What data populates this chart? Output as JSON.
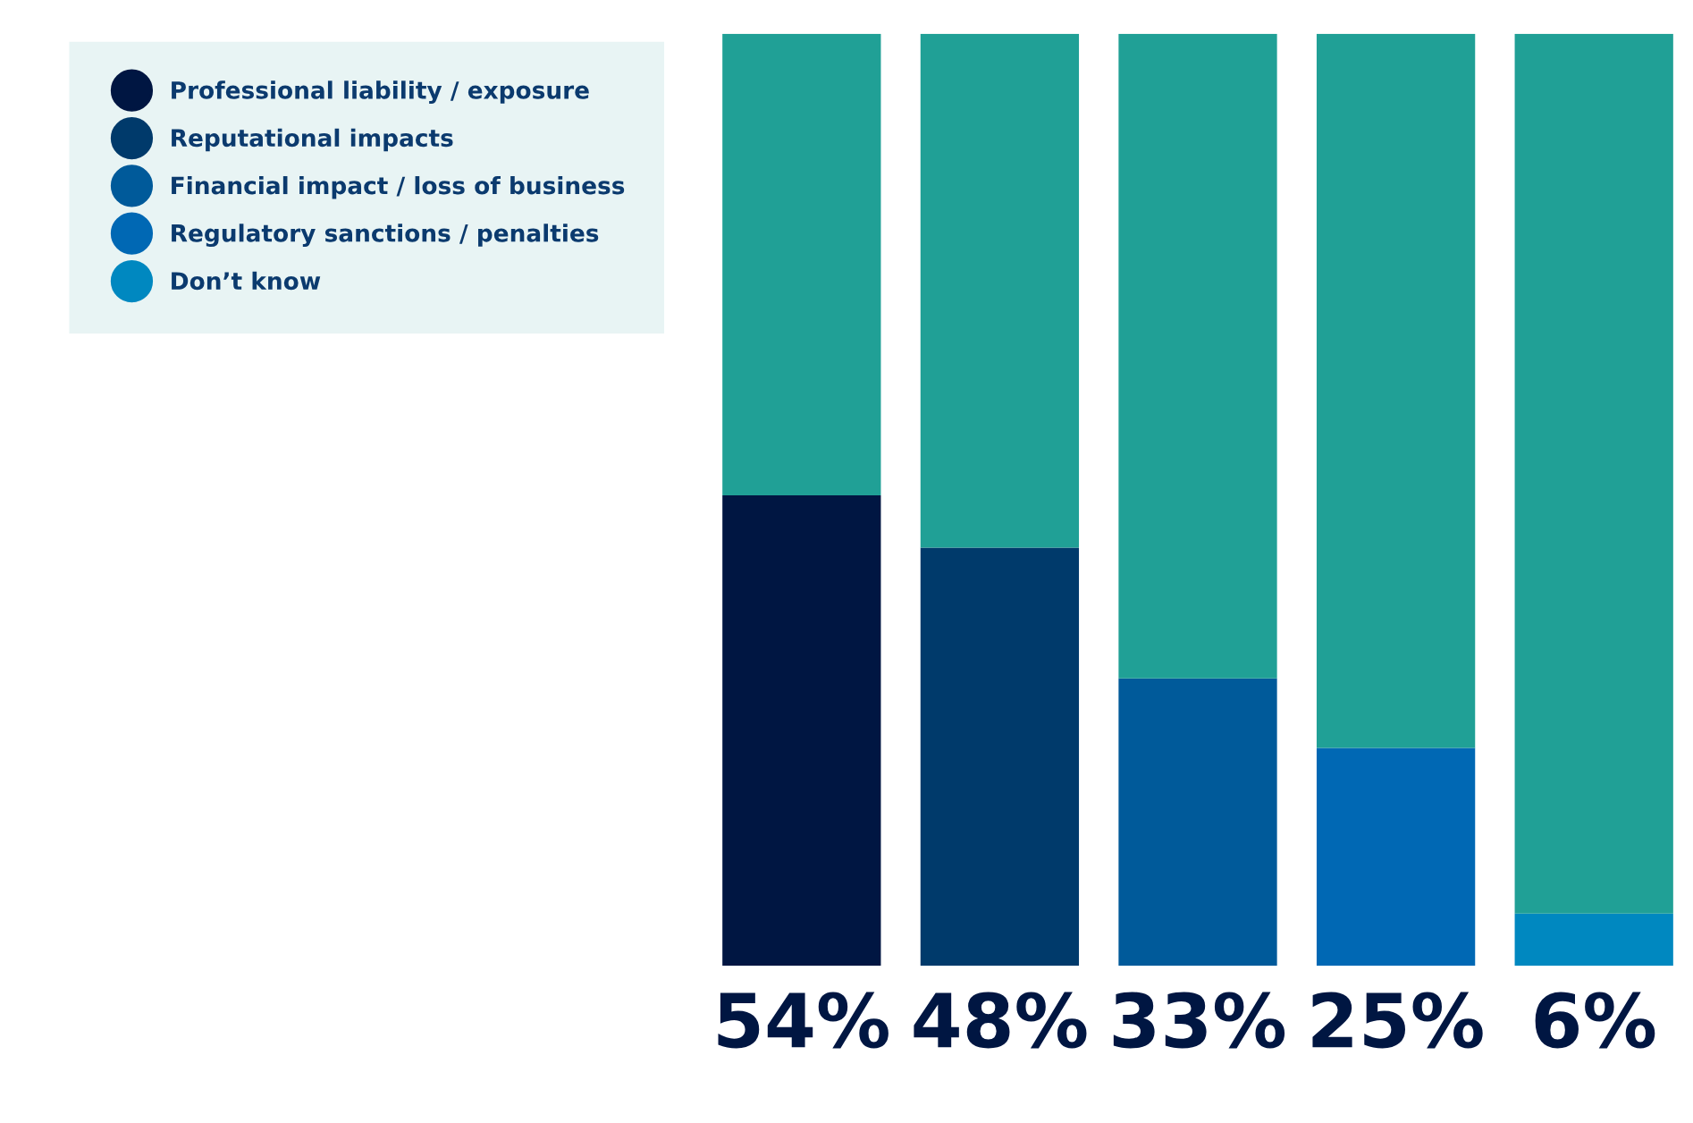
{
  "chart_data": {
    "type": "bar",
    "stacked": true,
    "categories": [
      null,
      null,
      null,
      null,
      null
    ],
    "series": [
      {
        "name": "Professional liability / exposure",
        "color": "#001642",
        "values": [
          54,
          null,
          null,
          null,
          null
        ],
        "value_labels": [
          "54%",
          null,
          null,
          null,
          null
        ]
      },
      {
        "name": "Reputational impacts",
        "color": "#003a6b",
        "values": [
          null,
          48,
          null,
          null,
          null
        ],
        "value_labels": [
          null,
          "48%",
          null,
          null,
          null
        ]
      },
      {
        "name": "Financial impact / loss of business",
        "color": "#005a9a",
        "values": [
          null,
          null,
          33,
          null,
          null
        ],
        "value_labels": [
          null,
          null,
          "33%",
          null,
          null
        ]
      },
      {
        "name": "Regulatory sanctions / penalties",
        "color": "#0068b4",
        "values": [
          null,
          null,
          null,
          25,
          null
        ],
        "value_labels": [
          null,
          null,
          null,
          "25%",
          null
        ]
      },
      {
        "name": "Don’t know",
        "color": "#0088c0",
        "values": [
          null,
          null,
          null,
          null,
          6
        ],
        "value_labels": [
          null,
          null,
          null,
          null,
          "6%"
        ]
      },
      {
        "color": "#20a096",
        "values": [
          53,
          59,
          74,
          82,
          101
        ]
      }
    ],
    "legend": "left",
    "grid": false,
    "marker": "circle"
  }
}
